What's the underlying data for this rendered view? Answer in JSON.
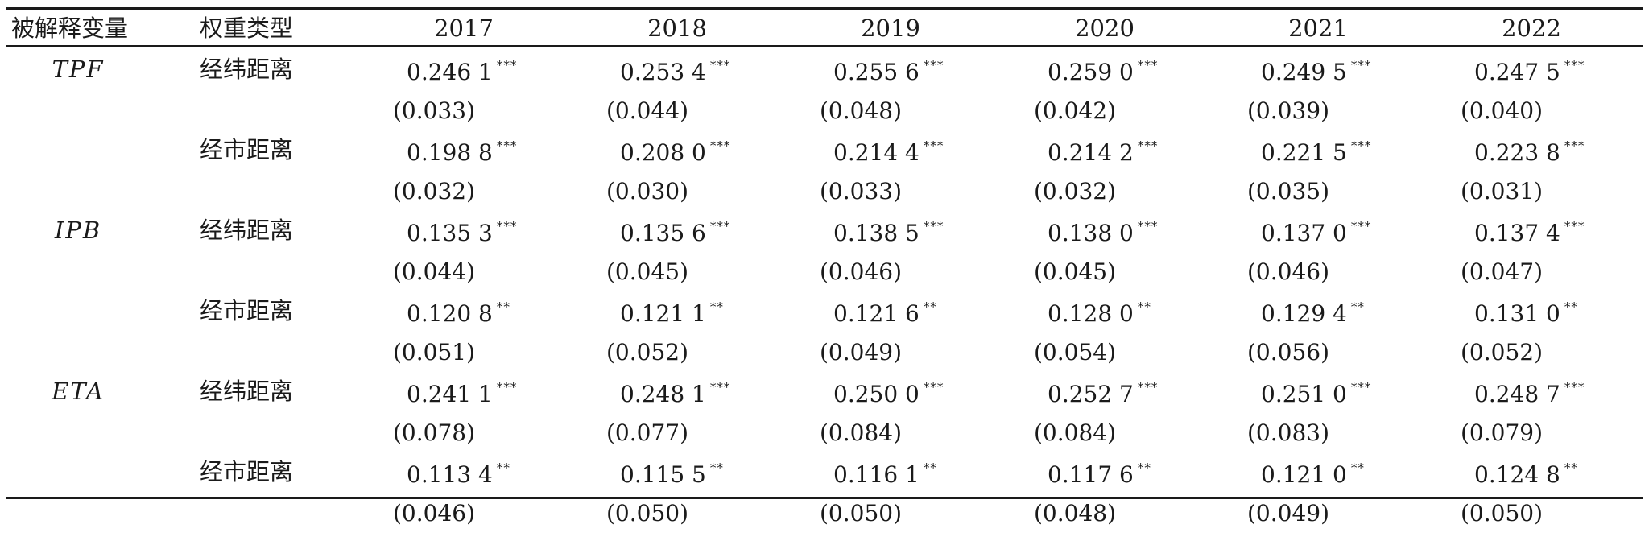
{
  "header": {
    "dependent_variable": "被解释变量",
    "weight_type": "权重类型",
    "years": [
      "2017",
      "2018",
      "2019",
      "2020",
      "2021",
      "2022"
    ]
  },
  "groups": [
    {
      "variable": "TPF",
      "rows": [
        {
          "weight": "经纬距离",
          "coefs": [
            "0.246 1",
            "0.253 4",
            "0.255 6",
            "0.259 0",
            "0.249 5",
            "0.247 5"
          ],
          "stars": [
            "***",
            "***",
            "***",
            "***",
            "***",
            "***"
          ],
          "ses": [
            "(0.033)",
            "(0.044)",
            "(0.048)",
            "(0.042)",
            "(0.039)",
            "(0.040)"
          ]
        },
        {
          "weight": "经市距离",
          "coefs": [
            "0.198 8",
            "0.208 0",
            "0.214 4",
            "0.214 2",
            "0.221 5",
            "0.223 8"
          ],
          "stars": [
            "***",
            "***",
            "***",
            "***",
            "***",
            "***"
          ],
          "ses": [
            "(0.032)",
            "(0.030)",
            "(0.033)",
            "(0.032)",
            "(0.035)",
            "(0.031)"
          ]
        }
      ]
    },
    {
      "variable": "IPB",
      "rows": [
        {
          "weight": "经纬距离",
          "coefs": [
            "0.135 3",
            "0.135 6",
            "0.138 5",
            "0.138 0",
            "0.137 0",
            "0.137 4"
          ],
          "stars": [
            "***",
            "***",
            "***",
            "***",
            "***",
            "***"
          ],
          "ses": [
            "(0.044)",
            "(0.045)",
            "(0.046)",
            "(0.045)",
            "(0.046)",
            "(0.047)"
          ]
        },
        {
          "weight": "经市距离",
          "coefs": [
            "0.120 8",
            "0.121 1",
            "0.121 6",
            "0.128 0",
            "0.129 4",
            "0.131 0"
          ],
          "stars": [
            "**",
            "**",
            "**",
            "**",
            "**",
            "**"
          ],
          "ses": [
            "(0.051)",
            "(0.052)",
            "(0.049)",
            "(0.054)",
            "(0.056)",
            "(0.052)"
          ]
        }
      ]
    },
    {
      "variable": "ETA",
      "rows": [
        {
          "weight": "经纬距离",
          "coefs": [
            "0.241 1",
            "0.248 1",
            "0.250 0",
            "0.252 7",
            "0.251 0",
            "0.248 7"
          ],
          "stars": [
            "***",
            "***",
            "***",
            "***",
            "***",
            "***"
          ],
          "ses": [
            "(0.078)",
            "(0.077)",
            "(0.084)",
            "(0.084)",
            "(0.083)",
            "(0.079)"
          ]
        },
        {
          "weight": "经市距离",
          "coefs": [
            "0.113 4",
            "0.115 5",
            "0.116 1",
            "0.117 6",
            "0.121 0",
            "0.124 8"
          ],
          "stars": [
            "**",
            "**",
            "**",
            "**",
            "**",
            "**"
          ],
          "ses": [
            "(0.046)",
            "(0.050)",
            "(0.050)",
            "(0.048)",
            "(0.049)",
            "(0.050)"
          ]
        }
      ]
    }
  ]
}
